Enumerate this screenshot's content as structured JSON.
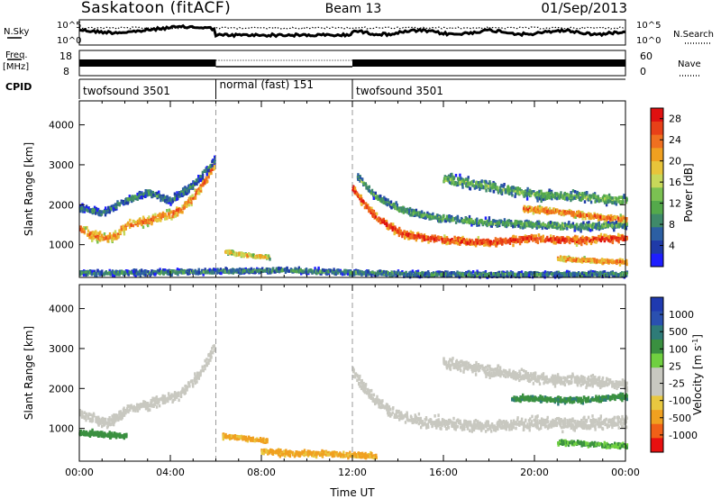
{
  "header": {
    "title_left": "Saskatoon (fitACF)",
    "title_center": "Beam 13",
    "title_right": "01/Sep/2013"
  },
  "nsky": {
    "label": "N.Sky",
    "ticks": [
      "10^5",
      "10^0"
    ],
    "right_label": "N.Search",
    "right_ticks": [
      "10^5",
      "10^0"
    ]
  },
  "freq": {
    "label_line1": "Freq.",
    "label_line2": "[MHz]",
    "ticks": [
      "18",
      "8"
    ],
    "right_label": "Nave",
    "right_ticks": [
      "60",
      "0"
    ]
  },
  "cpid": {
    "label": "CPID",
    "segments": [
      {
        "label": "twofsound 3501",
        "start_hr": 0,
        "end_hr": 6
      },
      {
        "label": "normal (fast) 151",
        "start_hr": 6,
        "end_hr": 12
      },
      {
        "label": "twofsound 3501",
        "start_hr": 12,
        "end_hr": 24
      }
    ]
  },
  "colors": {
    "power": [
      "#1e1eff",
      "#1f3aa8",
      "#2c5fa3",
      "#3f8a6a",
      "#54a94b",
      "#7bc152",
      "#c7d85a",
      "#e8c43a",
      "#f0a020",
      "#f07020",
      "#e84018",
      "#e01010"
    ],
    "velocity": [
      "#e81010",
      "#f06018",
      "#f0a020",
      "#e8c840",
      "#c8c8c0",
      "#c8c8c0",
      "#70d040",
      "#3a9040",
      "#2e7b78",
      "#2a50b0",
      "#1f3ab0"
    ],
    "ground_scatter": "#c0c0b8"
  },
  "chart_data": [
    {
      "type": "heatmap",
      "name": "power",
      "ylabel": "Slant Range [km]",
      "xlabel": "",
      "xlim": [
        0,
        24
      ],
      "ylim": [
        180,
        4600
      ],
      "y_ticks": [
        "1000",
        "2000",
        "3000",
        "4000"
      ],
      "colorbar_label": "Power [dB]",
      "colorbar_ticks": [
        "4",
        "8",
        "12",
        "16",
        "20",
        "24",
        "28"
      ],
      "colorbar_range": [
        0,
        30
      ],
      "bands": [
        {
          "t": [
            0.0,
            0.5,
            1.0,
            1.5,
            2.0,
            2.5,
            3.0,
            3.5,
            4.0,
            4.5,
            5.0,
            5.5,
            5.9
          ],
          "r": [
            1400,
            1250,
            1150,
            1200,
            1450,
            1550,
            1600,
            1700,
            1750,
            1900,
            2200,
            2600,
            3000
          ],
          "w": 320,
          "p": 24
        },
        {
          "t": [
            0.0,
            1.0,
            2.0,
            3.0,
            4.0,
            5.0,
            5.9
          ],
          "r": [
            1900,
            1800,
            2100,
            2300,
            2100,
            2500,
            3100
          ],
          "w": 260,
          "p": 9
        },
        {
          "t": [
            6.4,
            7.0,
            7.5,
            8.0,
            8.3
          ],
          "r": [
            820,
            760,
            720,
            700,
            680
          ],
          "w": 130,
          "p": 20
        },
        {
          "t": [
            12.0,
            12.5,
            13.0,
            13.5,
            14.0,
            15.0,
            16.0,
            17.0,
            18.0,
            19.0,
            20.0,
            21.0,
            22.0,
            23.0,
            24.0
          ],
          "r": [
            2400,
            2000,
            1700,
            1500,
            1300,
            1180,
            1120,
            1080,
            1050,
            1100,
            1150,
            1120,
            1100,
            1150,
            1150
          ],
          "w": 260,
          "p": 28
        },
        {
          "t": [
            12.2,
            13.0,
            14.0,
            15.0,
            16.0,
            18.0,
            20.0,
            22.0,
            24.0
          ],
          "r": [
            2700,
            2200,
            1900,
            1750,
            1650,
            1550,
            1500,
            1450,
            1500
          ],
          "w": 260,
          "p": 12
        },
        {
          "t": [
            16.0,
            18.0,
            20.0,
            22.0,
            24.0
          ],
          "r": [
            2650,
            2450,
            2250,
            2200,
            2100
          ],
          "w": 360,
          "p": 13
        },
        {
          "t": [
            19.5,
            20.5,
            21.5,
            22.5,
            23.5,
            24.0
          ],
          "r": [
            1900,
            1850,
            1800,
            1700,
            1650,
            1650
          ],
          "w": 230,
          "p": 25
        },
        {
          "t": [
            21.0,
            22.0,
            23.0,
            24.0
          ],
          "r": [
            650,
            620,
            580,
            560
          ],
          "w": 150,
          "p": 24
        },
        {
          "t": [
            0.0,
            3.0,
            6.0,
            9.0,
            12.0,
            15.0,
            18.0,
            21.0,
            24.0
          ],
          "r": [
            280,
            300,
            330,
            360,
            300,
            260,
            250,
            260,
            260
          ],
          "w": 180,
          "p": 10
        }
      ]
    },
    {
      "type": "heatmap",
      "name": "velocity",
      "ylabel": "Slant Range [km]",
      "xlabel": "Time UT",
      "xlim": [
        0,
        24
      ],
      "ylim": [
        180,
        4600
      ],
      "x_ticks": [
        "00:00",
        "04:00",
        "08:00",
        "12:00",
        "16:00",
        "20:00",
        "00:00"
      ],
      "y_ticks": [
        "1000",
        "2000",
        "3000",
        "4000"
      ],
      "colorbar_label": "Velocity [m s^-1]",
      "colorbar_ticks": [
        "1000",
        "500",
        "100",
        "25",
        "-25",
        "-100",
        "-500",
        "-1000"
      ],
      "bands": [
        {
          "t": [
            0.0,
            0.5,
            1.0,
            1.5,
            2.0,
            2.5,
            3.0,
            3.5,
            4.0,
            4.5,
            5.0,
            5.5,
            5.9
          ],
          "r": [
            1400,
            1250,
            1150,
            1200,
            1450,
            1550,
            1600,
            1700,
            1750,
            1900,
            2200,
            2600,
            3000
          ],
          "w": 380,
          "v": 0
        },
        {
          "t": [
            0.0,
            1.0,
            2.0
          ],
          "r": [
            900,
            850,
            800
          ],
          "w": 200,
          "v": 200
        },
        {
          "t": [
            6.3,
            7.0,
            7.6,
            8.2
          ],
          "r": [
            800,
            760,
            720,
            690
          ],
          "w": 140,
          "v": -130
        },
        {
          "t": [
            8.0,
            9.0,
            10.0,
            11.0,
            12.0,
            13.0
          ],
          "r": [
            420,
            380,
            360,
            360,
            330,
            300
          ],
          "w": 200,
          "v": -120
        },
        {
          "t": [
            12.0,
            12.5,
            13.0,
            13.5,
            14.0,
            15.0,
            16.0,
            17.0,
            18.0,
            19.0,
            20.0,
            21.0,
            22.0,
            23.0,
            24.0
          ],
          "r": [
            2400,
            2000,
            1700,
            1500,
            1300,
            1180,
            1120,
            1080,
            1050,
            1100,
            1150,
            1120,
            1100,
            1150,
            1150
          ],
          "w": 420,
          "v": 0
        },
        {
          "t": [
            16.0,
            18.0,
            20.0,
            22.0,
            24.0
          ],
          "r": [
            2650,
            2450,
            2250,
            2200,
            2100
          ],
          "w": 420,
          "v": 0
        },
        {
          "t": [
            21.0,
            22.0,
            23.0,
            24.0
          ],
          "r": [
            650,
            620,
            580,
            560
          ],
          "w": 170,
          "v": 110
        },
        {
          "t": [
            19.0,
            20.0,
            21.0,
            22.0,
            23.0,
            24.0
          ],
          "r": [
            1750,
            1750,
            1700,
            1700,
            1750,
            1800
          ],
          "w": 200,
          "v": 400
        }
      ]
    }
  ]
}
